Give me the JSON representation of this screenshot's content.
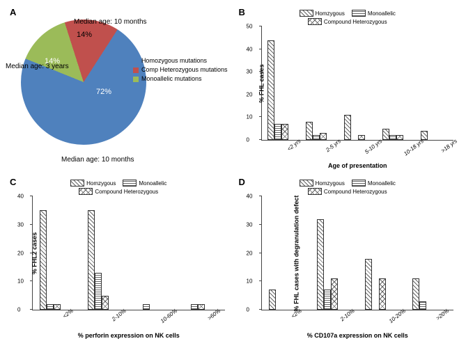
{
  "panelA": {
    "label": "A",
    "type": "pie",
    "slices": [
      {
        "label": "Homozygous mutations",
        "value": 72,
        "color": "#4f81bd",
        "annotation": "Median age: 10 months"
      },
      {
        "label": "Comp Heterozygous mutations",
        "value": 14,
        "color": "#c0504d",
        "annotation": "Median age: 3 years"
      },
      {
        "label": "Monoallelic mutations",
        "value": 14,
        "color": "#9bbb59",
        "annotation": "Median age: 10 months"
      }
    ],
    "pct_labels": [
      "72%",
      "14%",
      "14%"
    ],
    "label_fontsize": 10
  },
  "panelB": {
    "label": "B",
    "type": "bar",
    "ylabel": "% FHL cases",
    "xlabel": "Age of presentation",
    "ylim": [
      0,
      50
    ],
    "ytick_step": 10,
    "categories": [
      "<2 yrs",
      "2-5 yrs",
      "5-10 yrs",
      "10-18 yrs",
      ">18 yrs"
    ],
    "series": [
      {
        "name": "Homzygous",
        "pattern": "diag",
        "values": [
          44,
          8,
          11,
          5,
          4
        ]
      },
      {
        "name": "Monoallelic",
        "pattern": "lines",
        "values": [
          7,
          2,
          0,
          2,
          0
        ]
      },
      {
        "name": "Compound Heterozygous",
        "pattern": "cross",
        "values": [
          7,
          3,
          2,
          2,
          0
        ]
      }
    ]
  },
  "panelC": {
    "label": "C",
    "type": "bar",
    "ylabel": "% FHL2 cases",
    "xlabel": "% perforin expression on NK cells",
    "ylim": [
      0,
      40
    ],
    "ytick_step": 10,
    "categories": [
      "<2%",
      "2-10%",
      "10-60%",
      ">60%"
    ],
    "series": [
      {
        "name": "Homzygous",
        "pattern": "diag",
        "values": [
          35,
          35,
          0,
          0
        ]
      },
      {
        "name": "Monoallelic",
        "pattern": "lines",
        "values": [
          2,
          13,
          2,
          2
        ]
      },
      {
        "name": "Compound Heterozygous",
        "pattern": "cross",
        "values": [
          2,
          5,
          0,
          2
        ]
      }
    ]
  },
  "panelD": {
    "label": "D",
    "type": "bar",
    "ylabel": "% FHL cases with degranulation defect",
    "xlabel": "% CD107a expression on NK cells",
    "ylim": [
      0,
      40
    ],
    "ytick_step": 10,
    "categories": [
      "<2%",
      "2-10%",
      "10-20%",
      ">20%"
    ],
    "series": [
      {
        "name": "Homzygous",
        "pattern": "diag",
        "values": [
          7,
          32,
          18,
          11
        ]
      },
      {
        "name": "Monoallelic",
        "pattern": "lines",
        "values": [
          0,
          7,
          0,
          3
        ]
      },
      {
        "name": "Compound Heterozygous",
        "pattern": "cross",
        "values": [
          0,
          11,
          11,
          0
        ]
      }
    ]
  },
  "legend_labels": {
    "homzygous": "Homzygous",
    "monoallelic": "Monoallelic",
    "compound": "Compound Heterozygous"
  }
}
